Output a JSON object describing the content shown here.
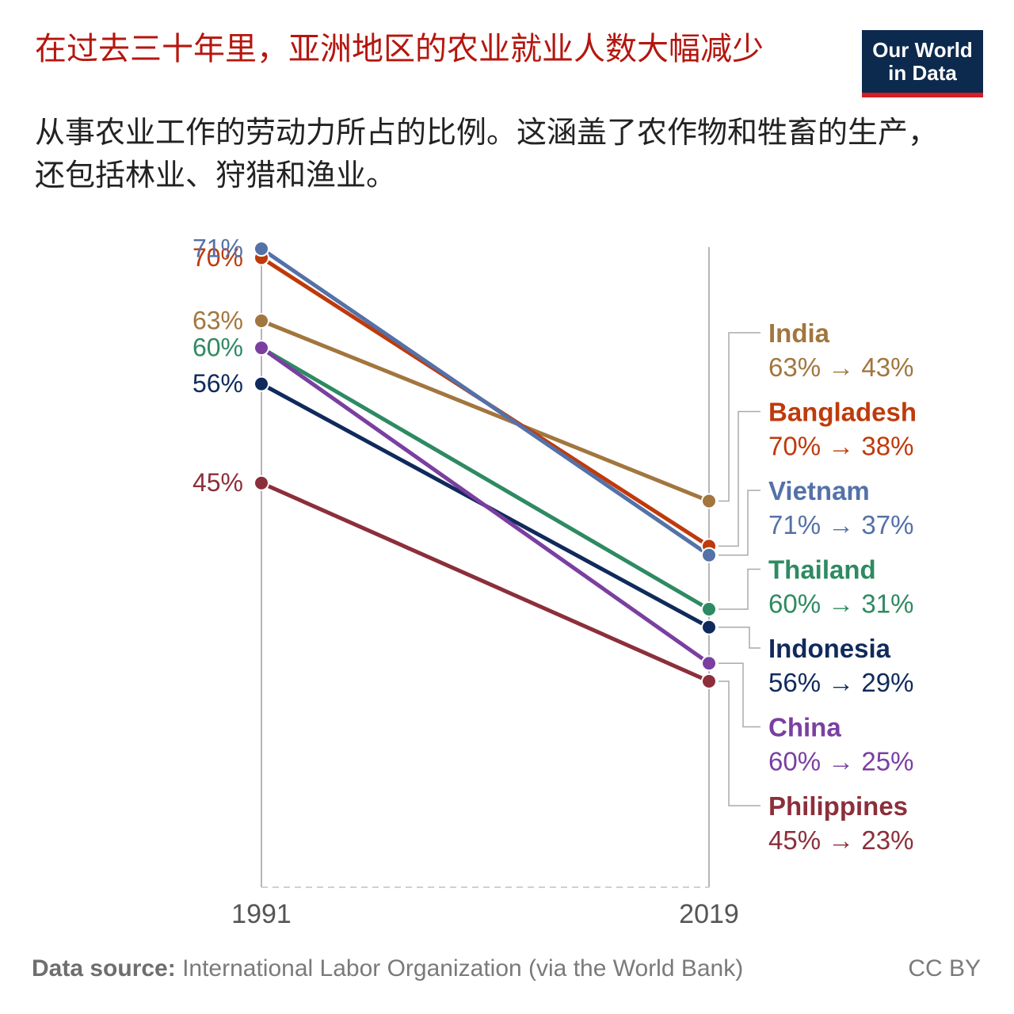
{
  "header": {
    "title": "在过去三十年里，亚洲地区的农业就业人数大幅减少",
    "subtitle": "从事农业工作的劳动力所占的比例。这涵盖了农作物和牲畜的生产，还包括林业、狩猎和渔业。",
    "logo_line1": "Our World",
    "logo_line2": "in Data"
  },
  "footer": {
    "source_label": "Data source:",
    "source_text": " International Labor Organization (via the World Bank)",
    "license": "CC BY"
  },
  "chart_data": {
    "type": "slope",
    "x": [
      "1991",
      "2019"
    ],
    "y_axis_visible": false,
    "grid": false,
    "legend_placement": "right labels",
    "series": [
      {
        "name": "India",
        "values": [
          63,
          43
        ],
        "color": "#a2763e",
        "start_label": "63%",
        "end_label": "63% → 43%"
      },
      {
        "name": "Bangladesh",
        "values": [
          70,
          38
        ],
        "color": "#bf3a0b",
        "start_label": "70%",
        "end_label": "70% → 38%"
      },
      {
        "name": "Vietnam",
        "values": [
          71,
          37
        ],
        "color": "#5471a8",
        "start_label": "71%",
        "end_label": "71% → 37%"
      },
      {
        "name": "Thailand",
        "values": [
          60,
          31
        ],
        "color": "#2e8a62",
        "start_label": "60%",
        "end_label": "60% → 31%"
      },
      {
        "name": "Indonesia",
        "values": [
          56,
          29
        ],
        "color": "#102a5c",
        "start_label": "56%",
        "end_label": "56% → 29%"
      },
      {
        "name": "China",
        "values": [
          60,
          25
        ],
        "color": "#7a3fa0",
        "start_label": "",
        "end_label": "60% → 25%"
      },
      {
        "name": "Philippines",
        "values": [
          45,
          23
        ],
        "color": "#8c2f3b",
        "start_label": "45%",
        "end_label": "45% → 23%"
      }
    ]
  }
}
